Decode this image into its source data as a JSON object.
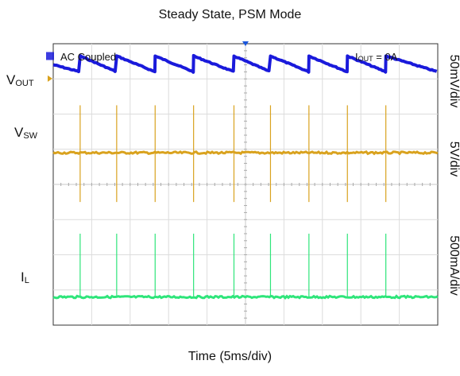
{
  "chart_data": {
    "type": "line",
    "title": "Steady State, PSM Mode",
    "xlabel": "Time (5ms/div)",
    "annotations": {
      "coupling": "AC Coupled",
      "load_symbol": "I",
      "load_sub": "OUT",
      "load_value": " = 0A"
    },
    "grid": true,
    "divisions": {
      "x": 10,
      "y": 8
    },
    "pulse_times_div": [
      0.7,
      1.65,
      2.65,
      3.65,
      4.7,
      5.65,
      6.65,
      7.65,
      8.65
    ],
    "series": [
      {
        "name_main": "V",
        "name_sub": "OUT",
        "scale": "50mV/div",
        "color": "#1a1adb",
        "shape": "sawtooth",
        "level_div": 0.35,
        "ripple_div": 0.45
      },
      {
        "name_main": "V",
        "name_sub": "SW",
        "scale": "5V/div",
        "color": "#d9a21e",
        "shape": "pulses",
        "level_div": 3.1,
        "pulse_top_div": 1.75,
        "pulse_bottom_div": 4.5
      },
      {
        "name_main": "I",
        "name_sub": "L",
        "scale": "500mA/div",
        "color": "#2ee57a",
        "shape": "spikes",
        "level_div": 7.2,
        "spike_top_div": 5.4
      }
    ]
  }
}
